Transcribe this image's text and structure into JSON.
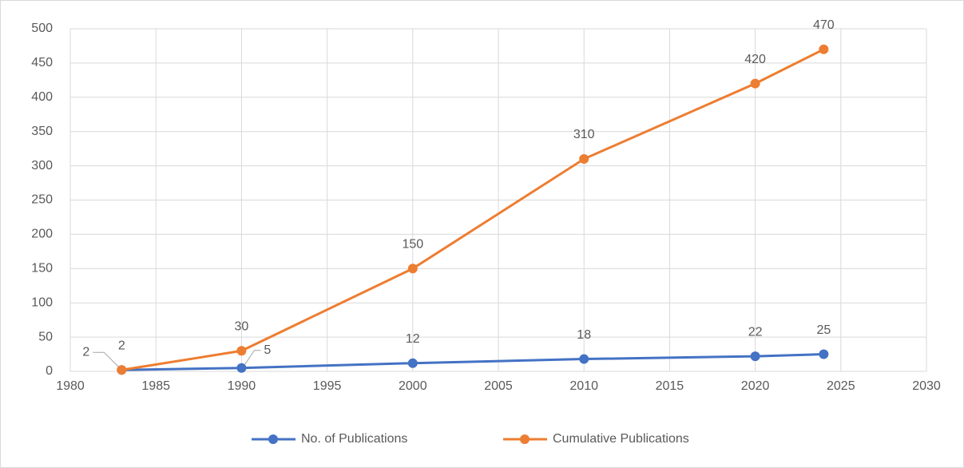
{
  "chart_data": {
    "type": "line",
    "x": [
      1983,
      1990,
      2000,
      2010,
      2020,
      2024
    ],
    "series": [
      {
        "name": "No. of Publications",
        "color": "#4472c4",
        "values": [
          2,
          5,
          12,
          18,
          22,
          25
        ]
      },
      {
        "name": "Cumulative Publications",
        "color": "#ed7d31",
        "values": [
          2,
          30,
          150,
          310,
          420,
          470
        ]
      }
    ],
    "xlim": [
      1980,
      2030
    ],
    "xticks": [
      1980,
      1985,
      1990,
      1995,
      2000,
      2005,
      2010,
      2015,
      2020,
      2025,
      2030
    ],
    "ylim": [
      0,
      500
    ],
    "yticks": [
      0,
      50,
      100,
      150,
      200,
      250,
      300,
      350,
      400,
      450,
      500
    ],
    "grid": true,
    "legend": "bottom"
  }
}
